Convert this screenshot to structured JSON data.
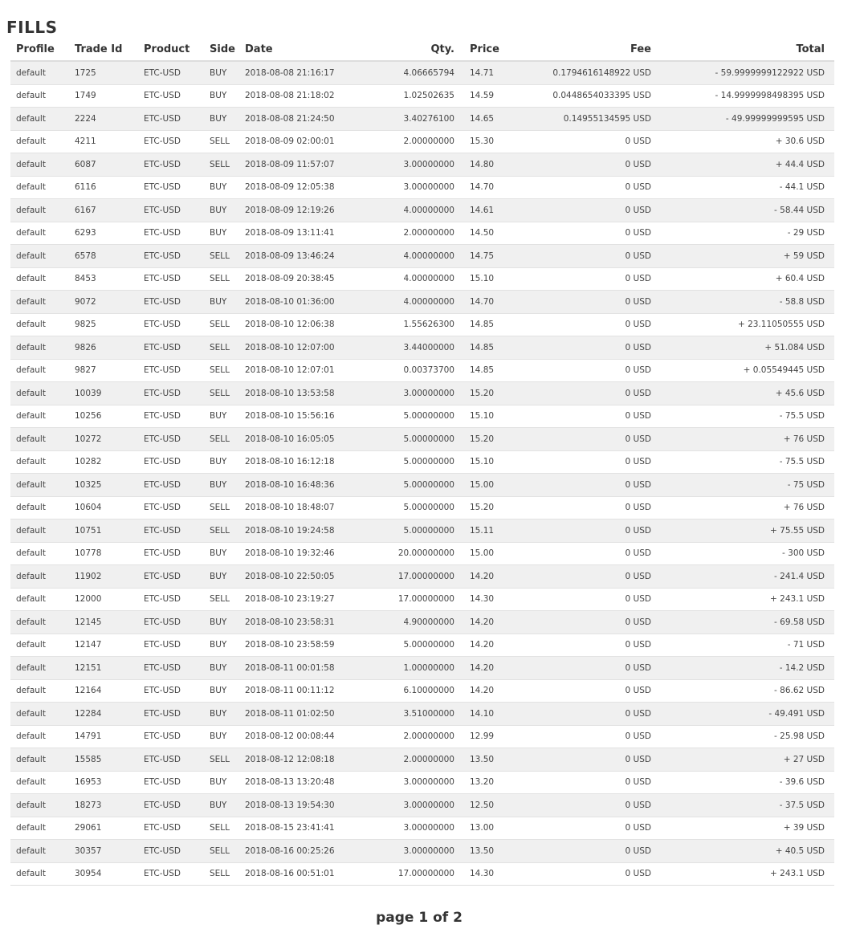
{
  "title": "FILLS",
  "columns": {
    "profile": "Profile",
    "trade_id": "Trade Id",
    "product": "Product",
    "side": "Side",
    "date": "Date",
    "qty": "Qty.",
    "price": "Price",
    "fee": "Fee",
    "total": "Total"
  },
  "rows": [
    {
      "profile": "default",
      "trade_id": "1725",
      "product": "ETC-USD",
      "side": "BUY",
      "date": "2018-08-08 21:16:17",
      "qty": "4.06665794",
      "price": "14.71",
      "fee": "0.1794616148922 USD",
      "total": "- 59.9999999122922 USD"
    },
    {
      "profile": "default",
      "trade_id": "1749",
      "product": "ETC-USD",
      "side": "BUY",
      "date": "2018-08-08 21:18:02",
      "qty": "1.02502635",
      "price": "14.59",
      "fee": "0.0448654033395 USD",
      "total": "- 14.9999998498395 USD"
    },
    {
      "profile": "default",
      "trade_id": "2224",
      "product": "ETC-USD",
      "side": "BUY",
      "date": "2018-08-08 21:24:50",
      "qty": "3.40276100",
      "price": "14.65",
      "fee": "0.14955134595 USD",
      "total": "- 49.99999999595 USD"
    },
    {
      "profile": "default",
      "trade_id": "4211",
      "product": "ETC-USD",
      "side": "SELL",
      "date": "2018-08-09 02:00:01",
      "qty": "2.00000000",
      "price": "15.30",
      "fee": "0 USD",
      "total": "+ 30.6 USD"
    },
    {
      "profile": "default",
      "trade_id": "6087",
      "product": "ETC-USD",
      "side": "SELL",
      "date": "2018-08-09 11:57:07",
      "qty": "3.00000000",
      "price": "14.80",
      "fee": "0 USD",
      "total": "+ 44.4 USD"
    },
    {
      "profile": "default",
      "trade_id": "6116",
      "product": "ETC-USD",
      "side": "BUY",
      "date": "2018-08-09 12:05:38",
      "qty": "3.00000000",
      "price": "14.70",
      "fee": "0 USD",
      "total": "- 44.1 USD"
    },
    {
      "profile": "default",
      "trade_id": "6167",
      "product": "ETC-USD",
      "side": "BUY",
      "date": "2018-08-09 12:19:26",
      "qty": "4.00000000",
      "price": "14.61",
      "fee": "0 USD",
      "total": "- 58.44 USD"
    },
    {
      "profile": "default",
      "trade_id": "6293",
      "product": "ETC-USD",
      "side": "BUY",
      "date": "2018-08-09 13:11:41",
      "qty": "2.00000000",
      "price": "14.50",
      "fee": "0 USD",
      "total": "- 29 USD"
    },
    {
      "profile": "default",
      "trade_id": "6578",
      "product": "ETC-USD",
      "side": "SELL",
      "date": "2018-08-09 13:46:24",
      "qty": "4.00000000",
      "price": "14.75",
      "fee": "0 USD",
      "total": "+ 59 USD"
    },
    {
      "profile": "default",
      "trade_id": "8453",
      "product": "ETC-USD",
      "side": "SELL",
      "date": "2018-08-09 20:38:45",
      "qty": "4.00000000",
      "price": "15.10",
      "fee": "0 USD",
      "total": "+ 60.4 USD"
    },
    {
      "profile": "default",
      "trade_id": "9072",
      "product": "ETC-USD",
      "side": "BUY",
      "date": "2018-08-10 01:36:00",
      "qty": "4.00000000",
      "price": "14.70",
      "fee": "0 USD",
      "total": "- 58.8 USD"
    },
    {
      "profile": "default",
      "trade_id": "9825",
      "product": "ETC-USD",
      "side": "SELL",
      "date": "2018-08-10 12:06:38",
      "qty": "1.55626300",
      "price": "14.85",
      "fee": "0 USD",
      "total": "+ 23.11050555 USD"
    },
    {
      "profile": "default",
      "trade_id": "9826",
      "product": "ETC-USD",
      "side": "SELL",
      "date": "2018-08-10 12:07:00",
      "qty": "3.44000000",
      "price": "14.85",
      "fee": "0 USD",
      "total": "+ 51.084 USD"
    },
    {
      "profile": "default",
      "trade_id": "9827",
      "product": "ETC-USD",
      "side": "SELL",
      "date": "2018-08-10 12:07:01",
      "qty": "0.00373700",
      "price": "14.85",
      "fee": "0 USD",
      "total": "+ 0.05549445 USD"
    },
    {
      "profile": "default",
      "trade_id": "10039",
      "product": "ETC-USD",
      "side": "SELL",
      "date": "2018-08-10 13:53:58",
      "qty": "3.00000000",
      "price": "15.20",
      "fee": "0 USD",
      "total": "+ 45.6 USD"
    },
    {
      "profile": "default",
      "trade_id": "10256",
      "product": "ETC-USD",
      "side": "BUY",
      "date": "2018-08-10 15:56:16",
      "qty": "5.00000000",
      "price": "15.10",
      "fee": "0 USD",
      "total": "- 75.5 USD"
    },
    {
      "profile": "default",
      "trade_id": "10272",
      "product": "ETC-USD",
      "side": "SELL",
      "date": "2018-08-10 16:05:05",
      "qty": "5.00000000",
      "price": "15.20",
      "fee": "0 USD",
      "total": "+ 76 USD"
    },
    {
      "profile": "default",
      "trade_id": "10282",
      "product": "ETC-USD",
      "side": "BUY",
      "date": "2018-08-10 16:12:18",
      "qty": "5.00000000",
      "price": "15.10",
      "fee": "0 USD",
      "total": "- 75.5 USD"
    },
    {
      "profile": "default",
      "trade_id": "10325",
      "product": "ETC-USD",
      "side": "BUY",
      "date": "2018-08-10 16:48:36",
      "qty": "5.00000000",
      "price": "15.00",
      "fee": "0 USD",
      "total": "- 75 USD"
    },
    {
      "profile": "default",
      "trade_id": "10604",
      "product": "ETC-USD",
      "side": "SELL",
      "date": "2018-08-10 18:48:07",
      "qty": "5.00000000",
      "price": "15.20",
      "fee": "0 USD",
      "total": "+ 76 USD"
    },
    {
      "profile": "default",
      "trade_id": "10751",
      "product": "ETC-USD",
      "side": "SELL",
      "date": "2018-08-10 19:24:58",
      "qty": "5.00000000",
      "price": "15.11",
      "fee": "0 USD",
      "total": "+ 75.55 USD"
    },
    {
      "profile": "default",
      "trade_id": "10778",
      "product": "ETC-USD",
      "side": "BUY",
      "date": "2018-08-10 19:32:46",
      "qty": "20.00000000",
      "price": "15.00",
      "fee": "0 USD",
      "total": "- 300 USD"
    },
    {
      "profile": "default",
      "trade_id": "11902",
      "product": "ETC-USD",
      "side": "BUY",
      "date": "2018-08-10 22:50:05",
      "qty": "17.00000000",
      "price": "14.20",
      "fee": "0 USD",
      "total": "- 241.4 USD"
    },
    {
      "profile": "default",
      "trade_id": "12000",
      "product": "ETC-USD",
      "side": "SELL",
      "date": "2018-08-10 23:19:27",
      "qty": "17.00000000",
      "price": "14.30",
      "fee": "0 USD",
      "total": "+ 243.1 USD"
    },
    {
      "profile": "default",
      "trade_id": "12145",
      "product": "ETC-USD",
      "side": "BUY",
      "date": "2018-08-10 23:58:31",
      "qty": "4.90000000",
      "price": "14.20",
      "fee": "0 USD",
      "total": "- 69.58 USD"
    },
    {
      "profile": "default",
      "trade_id": "12147",
      "product": "ETC-USD",
      "side": "BUY",
      "date": "2018-08-10 23:58:59",
      "qty": "5.00000000",
      "price": "14.20",
      "fee": "0 USD",
      "total": "- 71 USD"
    },
    {
      "profile": "default",
      "trade_id": "12151",
      "product": "ETC-USD",
      "side": "BUY",
      "date": "2018-08-11 00:01:58",
      "qty": "1.00000000",
      "price": "14.20",
      "fee": "0 USD",
      "total": "- 14.2 USD"
    },
    {
      "profile": "default",
      "trade_id": "12164",
      "product": "ETC-USD",
      "side": "BUY",
      "date": "2018-08-11 00:11:12",
      "qty": "6.10000000",
      "price": "14.20",
      "fee": "0 USD",
      "total": "- 86.62 USD"
    },
    {
      "profile": "default",
      "trade_id": "12284",
      "product": "ETC-USD",
      "side": "BUY",
      "date": "2018-08-11 01:02:50",
      "qty": "3.51000000",
      "price": "14.10",
      "fee": "0 USD",
      "total": "- 49.491 USD"
    },
    {
      "profile": "default",
      "trade_id": "14791",
      "product": "ETC-USD",
      "side": "BUY",
      "date": "2018-08-12 00:08:44",
      "qty": "2.00000000",
      "price": "12.99",
      "fee": "0 USD",
      "total": "- 25.98 USD"
    },
    {
      "profile": "default",
      "trade_id": "15585",
      "product": "ETC-USD",
      "side": "SELL",
      "date": "2018-08-12 12:08:18",
      "qty": "2.00000000",
      "price": "13.50",
      "fee": "0 USD",
      "total": "+ 27 USD"
    },
    {
      "profile": "default",
      "trade_id": "16953",
      "product": "ETC-USD",
      "side": "BUY",
      "date": "2018-08-13 13:20:48",
      "qty": "3.00000000",
      "price": "13.20",
      "fee": "0 USD",
      "total": "- 39.6 USD"
    },
    {
      "profile": "default",
      "trade_id": "18273",
      "product": "ETC-USD",
      "side": "BUY",
      "date": "2018-08-13 19:54:30",
      "qty": "3.00000000",
      "price": "12.50",
      "fee": "0 USD",
      "total": "- 37.5 USD"
    },
    {
      "profile": "default",
      "trade_id": "29061",
      "product": "ETC-USD",
      "side": "SELL",
      "date": "2018-08-15 23:41:41",
      "qty": "3.00000000",
      "price": "13.00",
      "fee": "0 USD",
      "total": "+ 39 USD"
    },
    {
      "profile": "default",
      "trade_id": "30357",
      "product": "ETC-USD",
      "side": "SELL",
      "date": "2018-08-16 00:25:26",
      "qty": "3.00000000",
      "price": "13.50",
      "fee": "0 USD",
      "total": "+ 40.5 USD"
    },
    {
      "profile": "default",
      "trade_id": "30954",
      "product": "ETC-USD",
      "side": "SELL",
      "date": "2018-08-16 00:51:01",
      "qty": "17.00000000",
      "price": "14.30",
      "fee": "0 USD",
      "total": "+ 243.1 USD"
    }
  ],
  "pagination": {
    "label": "page 1 of 2"
  }
}
